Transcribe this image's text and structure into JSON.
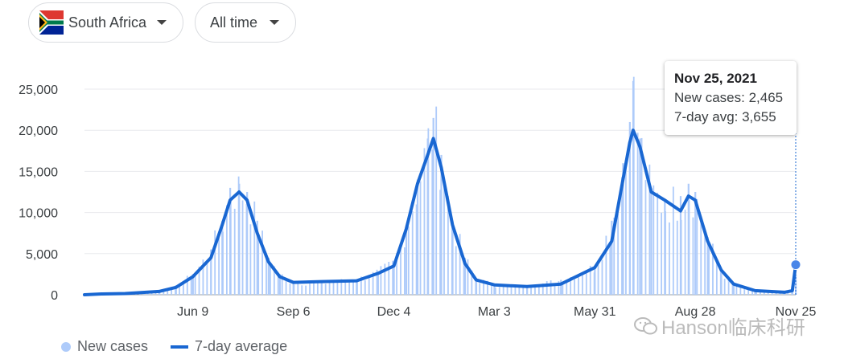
{
  "filters": {
    "country": "South Africa",
    "range": "All time",
    "icons": [
      "south-africa-flag-icon",
      "dropdown-arrow-icon"
    ]
  },
  "colors": {
    "bars": "#aecbfa",
    "line": "#1967d2",
    "grid": "#e8eaed",
    "flag_green": "#007a4d",
    "flag_red": "#de3831",
    "flag_blue": "#002395",
    "flag_yellow": "#ffb612"
  },
  "tooltip": {
    "date": "Nov 25, 2021",
    "new_cases": "New cases: 2,465",
    "avg": "7-day avg: 3,655"
  },
  "legend": {
    "new_cases": "New cases",
    "avg": "7-day average"
  },
  "watermark": "Hanson临床科研",
  "chart_data": {
    "type": "bar",
    "title": "",
    "xlabel": "",
    "ylabel": "",
    "ylim": [
      0,
      25000
    ],
    "grid": true,
    "legend_position": "bottom-left",
    "y_ticks": [
      0,
      5000,
      10000,
      15000,
      20000,
      25000
    ],
    "y_tick_labels": [
      "0",
      "5,000",
      "10,000",
      "15,000",
      "20,000",
      "25,000"
    ],
    "x_range": [
      "2020-03-05",
      "2021-11-25"
    ],
    "x_ticks": [
      "2020-06-09",
      "2020-09-06",
      "2020-12-04",
      "2021-03-03",
      "2021-05-31",
      "2021-08-28",
      "2021-11-25"
    ],
    "x_tick_labels": [
      "Jun 9",
      "Sep 6",
      "Dec 4",
      "Mar 3",
      "May 31",
      "Aug 28",
      "Nov 25"
    ],
    "series": [
      {
        "name": "New cases",
        "type": "bar",
        "points": [
          [
            "2020-03-05",
            50
          ],
          [
            "2020-04-10",
            150
          ],
          [
            "2020-05-10",
            400
          ],
          [
            "2020-05-25",
            1000
          ],
          [
            "2020-06-09",
            2500
          ],
          [
            "2020-06-25",
            5500
          ],
          [
            "2020-07-05",
            9000
          ],
          [
            "2020-07-12",
            13000
          ],
          [
            "2020-07-20",
            13500
          ],
          [
            "2020-07-27",
            12500
          ],
          [
            "2020-08-05",
            9000
          ],
          [
            "2020-08-15",
            4500
          ],
          [
            "2020-08-25",
            2500
          ],
          [
            "2020-09-06",
            1500
          ],
          [
            "2020-10-01",
            1500
          ],
          [
            "2020-11-01",
            1900
          ],
          [
            "2020-11-20",
            2800
          ],
          [
            "2020-12-04",
            4000
          ],
          [
            "2020-12-15",
            8500
          ],
          [
            "2020-12-25",
            14000
          ],
          [
            "2021-01-03",
            19000
          ],
          [
            "2021-01-08",
            21500
          ],
          [
            "2021-01-15",
            17000
          ],
          [
            "2021-01-25",
            9000
          ],
          [
            "2021-02-05",
            4500
          ],
          [
            "2021-02-15",
            2000
          ],
          [
            "2021-03-03",
            1200
          ],
          [
            "2021-04-01",
            1100
          ],
          [
            "2021-05-01",
            1800
          ],
          [
            "2021-05-31",
            3500
          ],
          [
            "2021-06-15",
            9000
          ],
          [
            "2021-06-25",
            16000
          ],
          [
            "2021-07-01",
            21000
          ],
          [
            "2021-07-04",
            26000
          ],
          [
            "2021-07-10",
            19000
          ],
          [
            "2021-07-20",
            13000
          ],
          [
            "2021-08-01",
            11500
          ],
          [
            "2021-08-15",
            12000
          ],
          [
            "2021-08-22",
            13500
          ],
          [
            "2021-08-28",
            12500
          ],
          [
            "2021-09-08",
            7000
          ],
          [
            "2021-09-20",
            3000
          ],
          [
            "2021-10-01",
            1200
          ],
          [
            "2021-10-20",
            500
          ],
          [
            "2021-11-15",
            300
          ],
          [
            "2021-11-22",
            800
          ],
          [
            "2021-11-25",
            2465
          ]
        ]
      },
      {
        "name": "7-day average",
        "type": "line",
        "points": [
          [
            "2020-03-05",
            0
          ],
          [
            "2020-03-20",
            100
          ],
          [
            "2020-04-10",
            150
          ],
          [
            "2020-05-10",
            400
          ],
          [
            "2020-05-25",
            900
          ],
          [
            "2020-06-09",
            2200
          ],
          [
            "2020-06-25",
            4500
          ],
          [
            "2020-07-05",
            8500
          ],
          [
            "2020-07-12",
            11500
          ],
          [
            "2020-07-20",
            12500
          ],
          [
            "2020-07-27",
            11500
          ],
          [
            "2020-08-05",
            7500
          ],
          [
            "2020-08-15",
            4000
          ],
          [
            "2020-08-25",
            2200
          ],
          [
            "2020-09-06",
            1500
          ],
          [
            "2020-10-01",
            1600
          ],
          [
            "2020-11-01",
            1700
          ],
          [
            "2020-11-20",
            2600
          ],
          [
            "2020-12-04",
            3500
          ],
          [
            "2020-12-15",
            8000
          ],
          [
            "2020-12-25",
            13500
          ],
          [
            "2021-01-03",
            17000
          ],
          [
            "2021-01-08",
            19000
          ],
          [
            "2021-01-15",
            15500
          ],
          [
            "2021-01-25",
            8500
          ],
          [
            "2021-02-05",
            3800
          ],
          [
            "2021-02-15",
            1800
          ],
          [
            "2021-03-03",
            1200
          ],
          [
            "2021-04-01",
            1000
          ],
          [
            "2021-05-01",
            1300
          ],
          [
            "2021-05-31",
            3300
          ],
          [
            "2021-06-15",
            6500
          ],
          [
            "2021-06-25",
            14000
          ],
          [
            "2021-07-01",
            18500
          ],
          [
            "2021-07-04",
            20000
          ],
          [
            "2021-07-10",
            18000
          ],
          [
            "2021-07-20",
            12500
          ],
          [
            "2021-08-01",
            11500
          ],
          [
            "2021-08-15",
            10200
          ],
          [
            "2021-08-22",
            12000
          ],
          [
            "2021-08-28",
            11500
          ],
          [
            "2021-09-08",
            6500
          ],
          [
            "2021-09-20",
            3000
          ],
          [
            "2021-10-01",
            1300
          ],
          [
            "2021-10-20",
            500
          ],
          [
            "2021-11-15",
            300
          ],
          [
            "2021-11-22",
            500
          ],
          [
            "2021-11-25",
            3655
          ]
        ]
      }
    ],
    "annotations": [
      {
        "date": "2021-11-25",
        "label": "Nov 25, 2021",
        "new_cases": 2465,
        "avg": 3655
      }
    ]
  }
}
